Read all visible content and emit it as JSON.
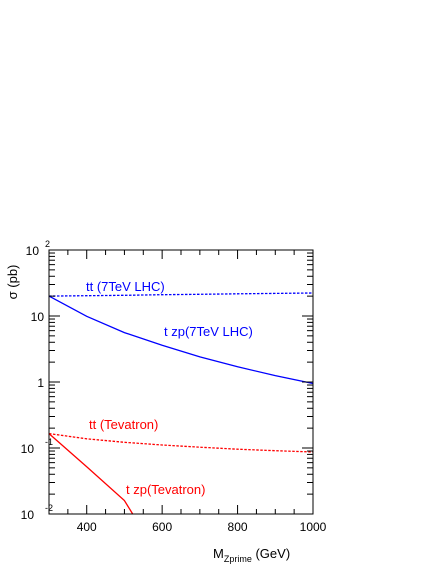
{
  "chart_data": {
    "type": "line",
    "title": "",
    "xlabel": {
      "main": "M",
      "sub": "Zprime",
      "unit": " (GeV)"
    },
    "ylabel": "σ (pb)",
    "xlim": [
      300,
      1000
    ],
    "ylim": [
      0.01,
      100
    ],
    "yscale": "log",
    "grid": false,
    "x_ticks": [
      "400",
      "600",
      "800",
      "1000"
    ],
    "y_ticks": [
      {
        "value": 100,
        "base": "10",
        "exp": "2"
      },
      {
        "value": 10,
        "base": "10",
        "exp": ""
      },
      {
        "value": 1,
        "base": "1",
        "exp": ""
      },
      {
        "value": 0.1,
        "base": "10",
        "exp": "-1"
      },
      {
        "value": 0.01,
        "base": "10",
        "exp": "-2"
      }
    ],
    "series": [
      {
        "name": "tt (7TeV LHC)",
        "color": "#0000ff",
        "style": "dashed",
        "x": [
          300,
          400,
          500,
          600,
          700,
          800,
          900,
          1000
        ],
        "y": [
          20,
          20.3,
          20.6,
          21,
          21.3,
          21.7,
          22,
          22.3
        ]
      },
      {
        "name": "t zp(7TeV LHC)",
        "color": "#0000ff",
        "style": "solid",
        "x": [
          300,
          400,
          500,
          600,
          700,
          800,
          900,
          1000
        ],
        "y": [
          20,
          9.9,
          5.6,
          3.6,
          2.4,
          1.7,
          1.25,
          0.95
        ]
      },
      {
        "name": "tt (Tevatron)",
        "color": "#ff0000",
        "style": "dashed",
        "x": [
          300,
          400,
          500,
          600,
          700,
          800,
          900,
          1000
        ],
        "y": [
          0.165,
          0.138,
          0.122,
          0.111,
          0.103,
          0.096,
          0.091,
          0.087
        ]
      },
      {
        "name": "t zp(Tevatron)",
        "color": "#ff0000",
        "style": "solid",
        "x": [
          300,
          400,
          500,
          522
        ],
        "y": [
          0.165,
          0.052,
          0.016,
          0.01
        ]
      }
    ]
  }
}
